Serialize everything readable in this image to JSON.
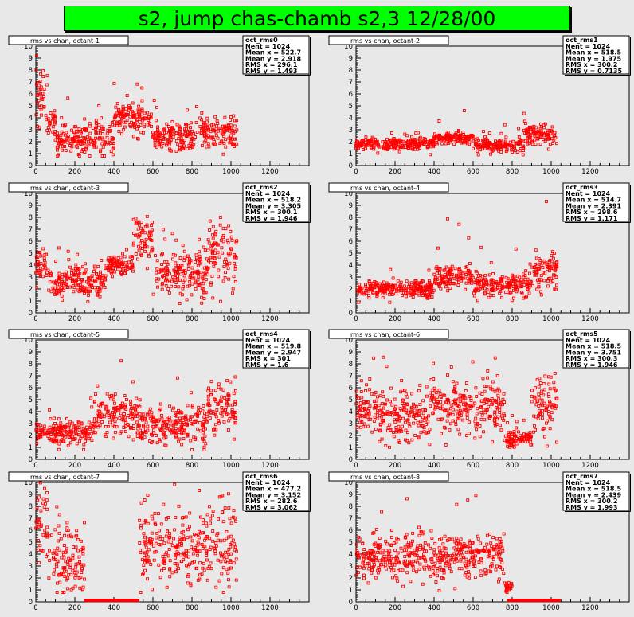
{
  "page": {
    "title": "s2, jump chas-chamb s2,3 12/28/00"
  },
  "colors": {
    "title_bg": "#00ff00",
    "marker": "#ff0000",
    "pad_bg": "#e8e8e8"
  },
  "chart_data": [
    {
      "type": "scatter",
      "title": "rms vs chan, octant-1",
      "stats": {
        "name": "oct_rms0",
        "entries": "Nent = 1024",
        "mean_x": "Mean x =  522.7",
        "mean_y": "Mean y =  2.918",
        "rms_x": "RMS x =  296.1",
        "rms_y": "RMS y =  1.493"
      },
      "xlim": [
        0,
        1400
      ],
      "ylim": [
        0,
        10
      ],
      "x_ticks": [
        0,
        200,
        400,
        600,
        800,
        1000,
        1200
      ],
      "y_ticks": [
        0,
        1,
        2,
        3,
        4,
        5,
        6,
        7,
        8,
        9,
        10
      ],
      "segments": [
        {
          "x0": 0,
          "x1": 60,
          "lo": 1.0,
          "hi": 9.2,
          "center": 5.5,
          "spread": 2.5
        },
        {
          "x0": 60,
          "x1": 100,
          "lo": 0.8,
          "hi": 5.0,
          "center": 3.8,
          "spread": 0.8
        },
        {
          "x0": 100,
          "x1": 400,
          "lo": 0.8,
          "hi": 7.0,
          "center": 2.3,
          "spread": 1.2
        },
        {
          "x0": 400,
          "x1": 600,
          "lo": 2.0,
          "hi": 7.0,
          "center": 4.0,
          "spread": 0.9
        },
        {
          "x0": 600,
          "x1": 840,
          "lo": 0.8,
          "hi": 5.5,
          "center": 2.4,
          "spread": 1.0
        },
        {
          "x0": 840,
          "x1": 1030,
          "lo": 0.8,
          "hi": 5.0,
          "center": 2.8,
          "spread": 1.1
        }
      ],
      "zero_runs": [],
      "point_count": 1024
    },
    {
      "type": "scatter",
      "title": "rms vs chan, octant-2",
      "stats": {
        "name": "oct_rms1",
        "entries": "Nent = 1024",
        "mean_x": "Mean x =  518.5",
        "mean_y": "Mean y =  1.975",
        "rms_x": "RMS x =  300.2",
        "rms_y": "RMS y = 0.7135"
      },
      "xlim": [
        0,
        1400
      ],
      "ylim": [
        0,
        10
      ],
      "x_ticks": [
        0,
        200,
        400,
        600,
        800,
        1000,
        1200
      ],
      "y_ticks": [
        0,
        1,
        2,
        3,
        4,
        5,
        6,
        7,
        8,
        9,
        10
      ],
      "segments": [
        {
          "x0": 0,
          "x1": 400,
          "lo": 0.8,
          "hi": 3.0,
          "center": 1.8,
          "spread": 0.4
        },
        {
          "x0": 400,
          "x1": 600,
          "lo": 1.0,
          "hi": 7.5,
          "center": 2.3,
          "spread": 0.4
        },
        {
          "x0": 600,
          "x1": 860,
          "lo": 0.8,
          "hi": 3.5,
          "center": 1.7,
          "spread": 0.5
        },
        {
          "x0": 860,
          "x1": 1030,
          "lo": 1.0,
          "hi": 4.8,
          "center": 2.7,
          "spread": 0.8
        }
      ],
      "zero_runs": [],
      "point_count": 1024
    },
    {
      "type": "scatter",
      "title": "rms vs chan, octant-3",
      "stats": {
        "name": "oct_rms2",
        "entries": "Nent = 1024",
        "mean_x": "Mean x =  518.2",
        "mean_y": "Mean y =  3.305",
        "rms_x": "RMS x =  300.1",
        "rms_y": "RMS y =  1.946"
      },
      "xlim": [
        0,
        1400
      ],
      "ylim": [
        0,
        10
      ],
      "x_ticks": [
        0,
        200,
        400,
        600,
        800,
        1000,
        1200
      ],
      "y_ticks": [
        0,
        1,
        2,
        3,
        4,
        5,
        6,
        7,
        8,
        9,
        10
      ],
      "segments": [
        {
          "x0": 0,
          "x1": 60,
          "lo": 0.8,
          "hi": 6.0,
          "center": 3.8,
          "spread": 0.9
        },
        {
          "x0": 60,
          "x1": 360,
          "lo": 0.8,
          "hi": 5.5,
          "center": 2.6,
          "spread": 1.1
        },
        {
          "x0": 360,
          "x1": 500,
          "lo": 2.0,
          "hi": 5.5,
          "center": 4.0,
          "spread": 0.7
        },
        {
          "x0": 500,
          "x1": 600,
          "lo": 0.8,
          "hi": 8.8,
          "center": 6.2,
          "spread": 1.6
        },
        {
          "x0": 600,
          "x1": 880,
          "lo": 0.8,
          "hi": 7.0,
          "center": 3.4,
          "spread": 1.7
        },
        {
          "x0": 880,
          "x1": 1030,
          "lo": 0.8,
          "hi": 8.8,
          "center": 5.0,
          "spread": 2.0
        }
      ],
      "zero_runs": [],
      "point_count": 1024
    },
    {
      "type": "scatter",
      "title": "rms vs chan, octant-4",
      "stats": {
        "name": "oct_rms3",
        "entries": "Nent = 1024",
        "mean_x": "Mean x =  514.7",
        "mean_y": "Mean y =  2.391",
        "rms_x": "RMS x =  298.6",
        "rms_y": "RMS y =  1.171"
      },
      "xlim": [
        0,
        1400
      ],
      "ylim": [
        0,
        10
      ],
      "x_ticks": [
        0,
        200,
        400,
        600,
        800,
        1000,
        1200
      ],
      "y_ticks": [
        0,
        1,
        2,
        3,
        4,
        5,
        6,
        7,
        8,
        9,
        10
      ],
      "segments": [
        {
          "x0": 0,
          "x1": 400,
          "lo": 0.8,
          "hi": 4.0,
          "center": 2.0,
          "spread": 0.6
        },
        {
          "x0": 400,
          "x1": 600,
          "lo": 0.8,
          "hi": 9.0,
          "center": 3.0,
          "spread": 0.9
        },
        {
          "x0": 600,
          "x1": 900,
          "lo": 0.8,
          "hi": 5.5,
          "center": 2.3,
          "spread": 0.9
        },
        {
          "x0": 900,
          "x1": 1030,
          "lo": 1.0,
          "hi": 9.5,
          "center": 3.5,
          "spread": 1.5
        }
      ],
      "zero_runs": [],
      "point_count": 1024
    },
    {
      "type": "scatter",
      "title": "rms vs chan, octant-5",
      "stats": {
        "name": "oct_rms4",
        "entries": "Nent = 1024",
        "mean_x": "Mean x =  519.8",
        "mean_y": "Mean y =  2.947",
        "rms_x": "RMS x =    301",
        "rms_y": "RMS y =    1.6"
      },
      "xlim": [
        0,
        1400
      ],
      "ylim": [
        0,
        10
      ],
      "x_ticks": [
        0,
        200,
        400,
        600,
        800,
        1000,
        1200
      ],
      "y_ticks": [
        0,
        1,
        2,
        3,
        4,
        5,
        6,
        7,
        8,
        9,
        10
      ],
      "segments": [
        {
          "x0": 0,
          "x1": 280,
          "lo": 0.8,
          "hi": 5.0,
          "center": 2.3,
          "spread": 0.9
        },
        {
          "x0": 280,
          "x1": 520,
          "lo": 0.8,
          "hi": 9.0,
          "center": 3.6,
          "spread": 1.6
        },
        {
          "x0": 520,
          "x1": 880,
          "lo": 0.8,
          "hi": 7.0,
          "center": 2.8,
          "spread": 1.4
        },
        {
          "x0": 880,
          "x1": 1030,
          "lo": 1.0,
          "hi": 7.5,
          "center": 4.5,
          "spread": 1.8
        }
      ],
      "zero_runs": [],
      "point_count": 1024
    },
    {
      "type": "scatter",
      "title": "rms vs chan, octant-6",
      "stats": {
        "name": "oct_rms5",
        "entries": "Nent = 1024",
        "mean_x": "Mean x =  518.5",
        "mean_y": "Mean y =  3.751",
        "rms_x": "RMS x =  300.3",
        "rms_y": "RMS y =  1.946"
      },
      "xlim": [
        0,
        1400
      ],
      "ylim": [
        0,
        10
      ],
      "x_ticks": [
        0,
        200,
        400,
        600,
        800,
        1000,
        1200
      ],
      "y_ticks": [
        0,
        1,
        2,
        3,
        4,
        5,
        6,
        7,
        8,
        9,
        10
      ],
      "segments": [
        {
          "x0": 0,
          "x1": 100,
          "lo": 0.8,
          "hi": 9.0,
          "center": 4.5,
          "spread": 1.8
        },
        {
          "x0": 100,
          "x1": 380,
          "lo": 0.8,
          "hi": 9.0,
          "center": 3.5,
          "spread": 1.8
        },
        {
          "x0": 380,
          "x1": 760,
          "lo": 0.8,
          "hi": 9.0,
          "center": 4.5,
          "spread": 1.8
        },
        {
          "x0": 760,
          "x1": 900,
          "lo": 0.8,
          "hi": 4.0,
          "center": 1.7,
          "spread": 0.6
        },
        {
          "x0": 900,
          "x1": 1030,
          "lo": 1.0,
          "hi": 8.0,
          "center": 4.5,
          "spread": 2.0
        }
      ],
      "zero_runs": [],
      "point_count": 1024
    },
    {
      "type": "scatter",
      "title": "rms vs chan, octant-7",
      "stats": {
        "name": "oct_rms6",
        "entries": "Nent = 1024",
        "mean_x": "Mean x =  477.2",
        "mean_y": "Mean y =  3.152",
        "rms_x": "RMS x =  282.6",
        "rms_y": "RMS y =  3.062"
      },
      "xlim": [
        0,
        1400
      ],
      "ylim": [
        0,
        10
      ],
      "x_ticks": [
        0,
        200,
        400,
        600,
        800,
        1000,
        1200
      ],
      "y_ticks": [
        0,
        1,
        2,
        3,
        4,
        5,
        6,
        7,
        8,
        9,
        10
      ],
      "segments": [
        {
          "x0": 0,
          "x1": 60,
          "lo": 0.8,
          "hi": 10.0,
          "center": 6.5,
          "spread": 2.8
        },
        {
          "x0": 60,
          "x1": 250,
          "lo": 0.8,
          "hi": 10.0,
          "center": 3.5,
          "spread": 2.8
        },
        {
          "x0": 530,
          "x1": 1030,
          "lo": 0.8,
          "hi": 10.0,
          "center": 4.5,
          "spread": 2.8
        }
      ],
      "zero_runs": [
        {
          "x0": 255,
          "x1": 525
        }
      ],
      "point_count": 1024
    },
    {
      "type": "scatter",
      "title": "rms vs chan, octant-8",
      "stats": {
        "name": "oct_rms7",
        "entries": "Nent = 1024",
        "mean_x": "Mean x =  518.5",
        "mean_y": "Mean y =  2.439",
        "rms_x": "RMS x =  300.2",
        "rms_y": "RMS y =  1.993"
      },
      "xlim": [
        0,
        1400
      ],
      "ylim": [
        0,
        10
      ],
      "x_ticks": [
        0,
        200,
        400,
        600,
        800,
        1000,
        1200
      ],
      "y_ticks": [
        0,
        1,
        2,
        3,
        4,
        5,
        6,
        7,
        8,
        9,
        10
      ],
      "segments": [
        {
          "x0": 0,
          "x1": 80,
          "lo": 0.8,
          "hi": 7.0,
          "center": 3.5,
          "spread": 1.5
        },
        {
          "x0": 80,
          "x1": 760,
          "lo": 0.8,
          "hi": 9.0,
          "center": 3.8,
          "spread": 1.6
        },
        {
          "x0": 760,
          "x1": 800,
          "lo": 0.8,
          "hi": 2.0,
          "center": 1.2,
          "spread": 0.4
        }
      ],
      "zero_runs": [
        {
          "x0": 780,
          "x1": 1040
        }
      ],
      "point_count": 1024
    }
  ]
}
